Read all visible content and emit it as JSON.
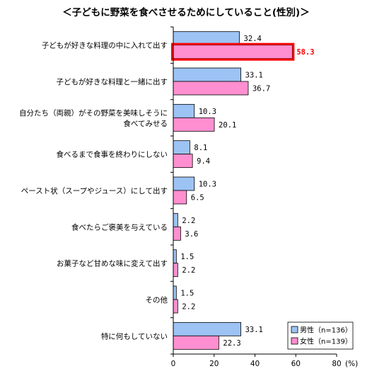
{
  "chart_data": {
    "type": "bar",
    "orientation": "horizontal",
    "title": "＜子どもに野菜を食べさせるためにしていること(性別)＞",
    "categories": [
      [
        "子どもが好きな料理の中に入れて出す"
      ],
      [
        "子どもが好きな料理と一緒に出す"
      ],
      [
        "自分たち（両親）がその野菜を美味しそうに",
        "食べてみせる"
      ],
      [
        "食べるまで食事を終わりにしない"
      ],
      [
        "ペースト状（スープやジュース）にして出す"
      ],
      [
        "食べたらご褒美を与えている"
      ],
      [
        "お菓子など甘めな味に変えて出す"
      ],
      [
        "その他"
      ],
      [
        "特に何もしていない"
      ]
    ],
    "series": [
      {
        "name": "男性（n=136）",
        "color": "#9cc3f4",
        "values": [
          32.4,
          33.1,
          10.3,
          8.1,
          10.3,
          2.2,
          1.5,
          1.5,
          33.1
        ],
        "labels": [
          "32.4",
          "33.1",
          "10.3",
          "8.1",
          "10.3",
          "2.2",
          "1.5",
          "1.5",
          "33.1"
        ]
      },
      {
        "name": "女性（n=139）",
        "color": "#ff8fd0",
        "values": [
          58.3,
          36.7,
          20.1,
          9.4,
          6.5,
          3.6,
          2.2,
          2.2,
          22.3
        ],
        "labels": [
          "58.3",
          "36.7",
          "20.1",
          "9.4",
          "6.5",
          "3.6",
          "2.2",
          "2.2",
          "22.3"
        ]
      }
    ],
    "highlight": {
      "series": 1,
      "category": 0,
      "color": "#ff0000"
    },
    "xlim": [
      0,
      80
    ],
    "xticks": [
      "0",
      "20",
      "40",
      "60",
      "80"
    ],
    "xunit": "(%)",
    "grid": false,
    "legend_position": "bottom-right"
  }
}
